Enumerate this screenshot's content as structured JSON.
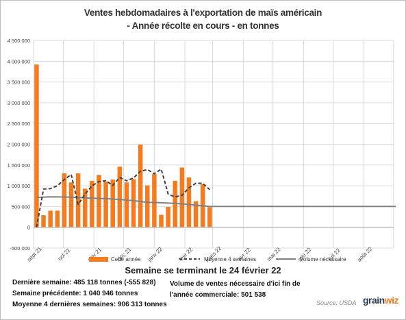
{
  "title_line1": "Ventes hebdomadaires à l'exportation de maïs américain",
  "title_line2": "- Année récolte en cours - en tonnes",
  "subtitle": "Semaine se terminant le 24 février 22",
  "stats": {
    "derniere_semaine": "Dernière semaine: 485 118 tonnes (-555 828)",
    "semaine_precedente": "Semaine précédente: 1 040 946 tonnes",
    "moyenne_4": "Moyenne 4 dernières semaines: 906 313 tonnes",
    "volume_line1": "Volume de ventes nécessaire d'ici fin de",
    "volume_line2": "l'année commerciale: 501 538"
  },
  "source": "Source: USDA",
  "logo": {
    "left": "grain",
    "right": "wiz"
  },
  "colors": {
    "bars": "#f47b20",
    "avg4": "#404040",
    "needed": "#808080",
    "grid": "#d9d9d9"
  },
  "chart_data": {
    "type": "bar",
    "ylim": [
      -500000,
      4500000
    ],
    "yticks": [
      -500000,
      0,
      500000,
      1000000,
      1500000,
      2000000,
      2500000,
      3000000,
      3500000,
      4000000,
      4500000
    ],
    "ytick_labels": [
      "-500 000",
      "0",
      "500 000",
      "1 000 000",
      "1 500 000",
      "2 000 000",
      "2 500 000",
      "3 000 000",
      "3 500 000",
      "4 000 000",
      "4 500 000"
    ],
    "x_range": [
      "2021-09-01",
      "2022-08-31"
    ],
    "xtick_dates": [
      "2021-09-01",
      "2021-10-01",
      "2021-11-01",
      "2021-12-01",
      "2022-01-01",
      "2022-02-01",
      "2022-03-01",
      "2022-04-01",
      "2022-05-01",
      "2022-06-01",
      "2022-07-01",
      "2022-08-01"
    ],
    "xtick_labels": [
      "sept 21",
      "oct 21",
      "nov 21",
      "déc 21",
      "janv 22",
      "févr 22",
      "mars 22",
      "avr 22",
      "mai 22",
      "juin 22",
      "juil 22",
      "août 22"
    ],
    "legend": [
      "Cette année",
      "Moyenne 4 semaines",
      "Volume nécessaire"
    ],
    "series": [
      {
        "name": "Cette année",
        "kind": "bar",
        "dates": [
          "2021-09-02",
          "2021-09-09",
          "2021-09-16",
          "2021-09-23",
          "2021-09-30",
          "2021-10-07",
          "2021-10-14",
          "2021-10-21",
          "2021-10-28",
          "2021-11-04",
          "2021-11-11",
          "2021-11-18",
          "2021-11-25",
          "2021-12-02",
          "2021-12-09",
          "2021-12-16",
          "2021-12-23",
          "2021-12-30",
          "2022-01-06",
          "2022-01-13",
          "2022-01-20",
          "2022-01-27",
          "2022-02-03",
          "2022-02-10",
          "2022-02-17",
          "2022-02-24"
        ],
        "values": [
          3920000,
          290000,
          400000,
          400000,
          1300000,
          1080000,
          1300000,
          930000,
          1120000,
          1260000,
          1100000,
          1150000,
          1460000,
          1080000,
          1160000,
          1990000,
          1010000,
          1280000,
          300000,
          490000,
          1120000,
          1440000,
          1200000,
          630000,
          1040946,
          485118
        ]
      },
      {
        "name": "Moyenne 4 semaines",
        "kind": "line",
        "dates": [
          "2021-09-02",
          "2021-09-09",
          "2021-09-16",
          "2021-09-23",
          "2021-09-30",
          "2021-10-07",
          "2021-10-14",
          "2021-10-21",
          "2021-10-28",
          "2021-11-04",
          "2021-11-11",
          "2021-11-18",
          "2021-11-25",
          "2021-12-02",
          "2021-12-09",
          "2021-12-16",
          "2021-12-23",
          "2021-12-30",
          "2022-01-06",
          "2022-01-13",
          "2022-01-20",
          "2022-01-27",
          "2022-02-03",
          "2022-02-10",
          "2022-02-17",
          "2022-02-24"
        ],
        "values": [
          0,
          920000,
          930000,
          1000000,
          1150000,
          1270000,
          550000,
          800000,
          1000000,
          1100000,
          1120000,
          1010000,
          1200000,
          1120000,
          1190000,
          1350000,
          1390000,
          1290000,
          1400000,
          800000,
          730000,
          770000,
          950000,
          1060000,
          1060000,
          906313
        ]
      },
      {
        "name": "Volume nécessaire",
        "kind": "line",
        "dates": [
          "2021-09-02",
          "2021-09-16",
          "2021-09-30",
          "2021-10-14",
          "2021-10-28",
          "2021-11-11",
          "2021-11-25",
          "2021-12-09",
          "2021-12-23",
          "2022-01-06",
          "2022-01-20",
          "2022-02-03",
          "2022-02-17",
          "2022-02-24",
          "2022-08-31"
        ],
        "values": [
          720000,
          735000,
          730000,
          720000,
          700000,
          690000,
          670000,
          640000,
          600000,
          590000,
          575000,
          550000,
          520000,
          501538,
          501538
        ]
      }
    ]
  }
}
